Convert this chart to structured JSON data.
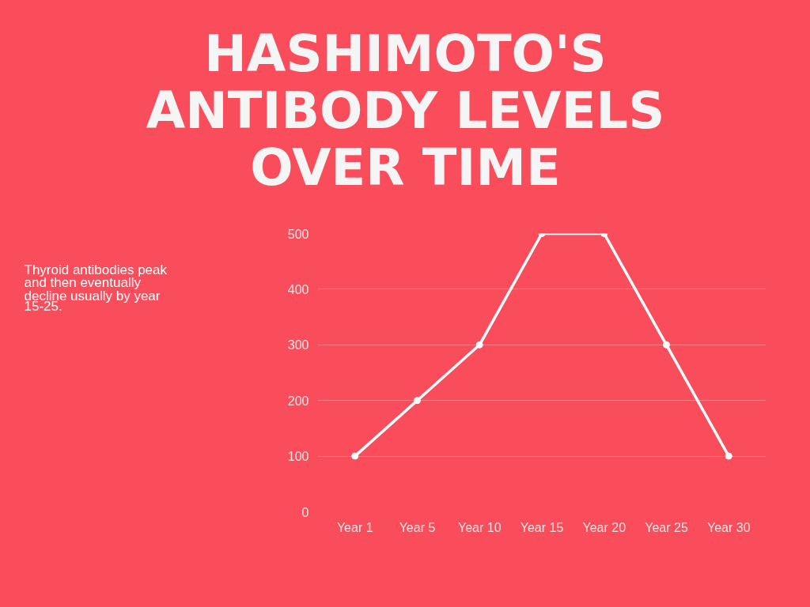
{
  "chart_data": {
    "type": "line",
    "title": "HASHIMOTO'S ANTIBODY LEVELS OVER TIME",
    "annotations": [
      "Thyroid antibodies peak and then eventually decline usually by year 15-25."
    ],
    "categories": [
      "Year 1",
      "Year 5",
      "Year 10",
      "Year 15",
      "Year 20",
      "Year 25",
      "Year 30"
    ],
    "series": [
      {
        "color": "#ffffff",
        "values": [
          100,
          200,
          300,
          500,
          500,
          300,
          100
        ]
      }
    ],
    "ylim": [
      0,
      500
    ],
    "yticks": [
      0,
      100,
      200,
      300,
      400,
      500
    ],
    "grid": "y",
    "marker": "circle",
    "line_style": "solid"
  }
}
